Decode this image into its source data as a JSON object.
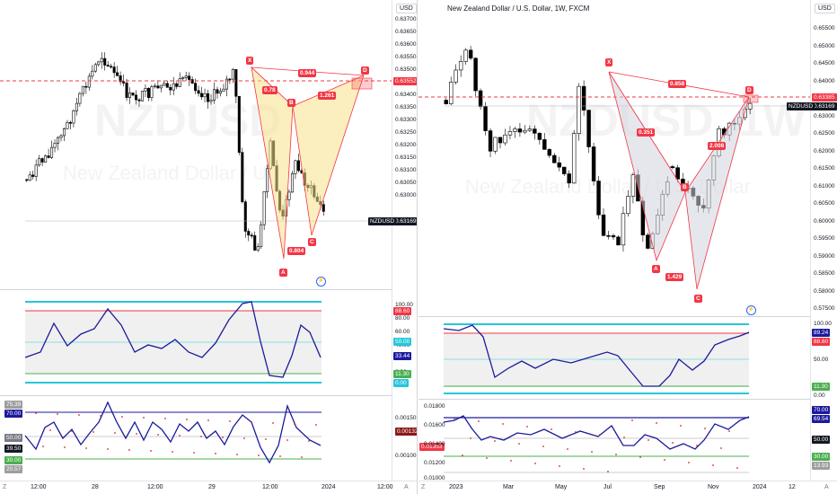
{
  "left": {
    "currency": "USD",
    "watermark_symbol": "NZDUSD",
    "watermark_name": "New Zealand Dollar / U",
    "price_ticks": [
      "0.63700",
      "0.63650",
      "0.63600",
      "0.63550",
      "0.63500",
      "0.63450",
      "0.63400",
      "0.63350",
      "0.63300",
      "0.63250",
      "0.63200",
      "0.63150",
      "0.63100",
      "0.63050",
      "0.63000"
    ],
    "red_line_tag": "0.63552",
    "last_price_symbol": "NZDUSD",
    "last_price": "0.63169",
    "pattern_points": [
      "X",
      "B",
      "D",
      "A",
      "C"
    ],
    "ratios": [
      "0.944",
      "0.78",
      "1.261",
      "0.804"
    ],
    "ind1_ticks": [
      "100.00",
      "80.00",
      "60.00",
      "40.00",
      "20.00",
      "0.00"
    ],
    "ind1_tags": [
      "88.60",
      "50.00",
      "33.44",
      "11.30",
      "0.00"
    ],
    "ind2_tags_left": [
      "75.39",
      "70.00",
      "50.00",
      "39.50",
      "30.00",
      "20.57"
    ],
    "ind2_ticks": [
      "0.00150",
      "0.00132",
      "0.00100"
    ],
    "time_labels": [
      "12:00",
      "28",
      "12:00",
      "29",
      "12:00",
      "2024",
      "12:00"
    ],
    "corner_left": "Z",
    "corner_right": "A"
  },
  "right": {
    "title": "New Zealand Dollar / U.S. Dollar, 1W, FXCM",
    "currency": "USD",
    "watermark_symbol": "NZDUSD, 1W",
    "watermark_name": "New Zealand Dollar / U.S. Dollar",
    "price_ticks": [
      "0.65500",
      "0.65000",
      "0.64500",
      "0.64000",
      "0.63500",
      "0.63000",
      "0.62500",
      "0.62000",
      "0.61500",
      "0.61000",
      "0.60500",
      "0.60000",
      "0.59500",
      "0.59000",
      "0.58500",
      "0.58000",
      "0.57500"
    ],
    "red_line_tag": "0.63385",
    "last_price_symbol": "NZDUSD",
    "last_price": "0.63169",
    "pattern_points": [
      "X",
      "D",
      "B",
      "A",
      "C"
    ],
    "ratios": [
      "0.858",
      "0.351",
      "2.008",
      "1.429"
    ],
    "ind1_ticks": [
      "100.00",
      "50.00",
      "0.00"
    ],
    "ind1_tags": [
      "89.24",
      "88.60",
      "11.30"
    ],
    "ind2_ticks": [
      "0.01800",
      "0.01600",
      "0.01400",
      "0.01200",
      "0.01000"
    ],
    "ind2_tags": [
      "70.00",
      "69.54",
      "50.00",
      "30.00",
      "13.93"
    ],
    "ind2_tag_left": "0.01353",
    "time_labels": [
      "2023",
      "Mar",
      "May",
      "Jul",
      "Sep",
      "Nov",
      "2024",
      "12"
    ],
    "corner_left": "Z",
    "corner_right": "A"
  },
  "colors": {
    "bull": "#ffffff",
    "bear": "#000000",
    "pattern_red": "#f23645",
    "pattern_fill_yellow": "#f7e08a",
    "pattern_fill_gray": "#d1d4dc",
    "indicator_blue": "#1c1a9c",
    "cyan": "#26c6da",
    "green": "#4caf50",
    "red": "#f23645"
  }
}
